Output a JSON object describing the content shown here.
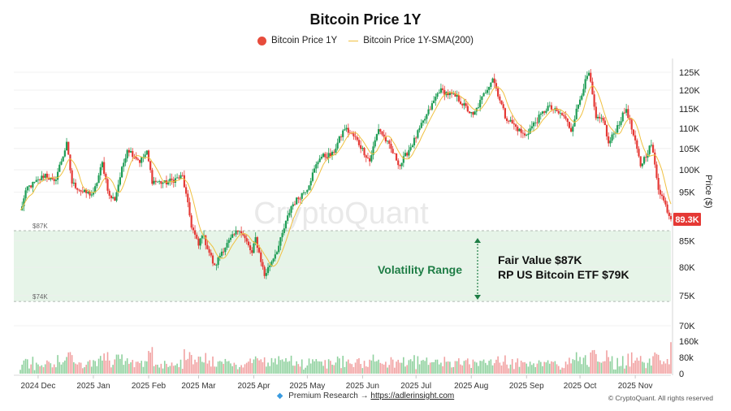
{
  "chart_data": {
    "type": "candlestick",
    "title": "Bitcoin Price 1Y",
    "legend": [
      {
        "label": "Bitcoin Price 1Y",
        "color": "#e74c3c",
        "marker": "dot"
      },
      {
        "label": "Bitcoin Price 1Y-SMA(200)",
        "color": "#f0c040",
        "marker": "line"
      }
    ],
    "ylabel": "Price ($)",
    "y_scale": "log",
    "y_ticks": [
      70000,
      75000,
      80000,
      85000,
      95000,
      100000,
      105000,
      110000,
      115000,
      120000,
      125000
    ],
    "y_tick_labels": [
      "70K",
      "75K",
      "80K",
      "85K",
      "95K",
      "100K",
      "105K",
      "110K",
      "115K",
      "120K",
      "125K"
    ],
    "ylim": [
      70000,
      128000
    ],
    "x_tick_labels": [
      "2024 Dec",
      "2025 Jan",
      "2025 Feb",
      "2025 Mar",
      "2025 Apr",
      "2025 May",
      "2025 Jun",
      "2025 Jul",
      "2025 Aug",
      "2025 Sep",
      "2025 Oct",
      "2025 Nov"
    ],
    "x_start": "2024-11-21",
    "x_end": "2025-11-21",
    "anchors": [
      [
        "2024-11-21",
        91000
      ],
      [
        "2024-11-25",
        96000
      ],
      [
        "2024-12-01",
        97500
      ],
      [
        "2024-12-05",
        99000
      ],
      [
        "2024-12-10",
        97000
      ],
      [
        "2024-12-17",
        106000
      ],
      [
        "2024-12-20",
        97000
      ],
      [
        "2024-12-26",
        95000
      ],
      [
        "2025-01-01",
        94500
      ],
      [
        "2025-01-06",
        101500
      ],
      [
        "2025-01-10",
        94000
      ],
      [
        "2025-01-13",
        93500
      ],
      [
        "2025-01-20",
        105000
      ],
      [
        "2025-01-27",
        102000
      ],
      [
        "2025-01-31",
        104000
      ],
      [
        "2025-02-03",
        97500
      ],
      [
        "2025-02-10",
        97000
      ],
      [
        "2025-02-20",
        98500
      ],
      [
        "2025-02-25",
        88000
      ],
      [
        "2025-03-01",
        84000
      ],
      [
        "2025-03-03",
        86500
      ],
      [
        "2025-03-10",
        80000
      ],
      [
        "2025-03-14",
        83000
      ],
      [
        "2025-03-24",
        87500
      ],
      [
        "2025-03-31",
        82500
      ],
      [
        "2025-04-02",
        85500
      ],
      [
        "2025-04-07",
        78500
      ],
      [
        "2025-04-10",
        80500
      ],
      [
        "2025-04-15",
        84000
      ],
      [
        "2025-04-22",
        92000
      ],
      [
        "2025-05-01",
        96000
      ],
      [
        "2025-05-08",
        103000
      ],
      [
        "2025-05-15",
        103500
      ],
      [
        "2025-05-22",
        110000
      ],
      [
        "2025-05-28",
        107500
      ],
      [
        "2025-06-05",
        102000
      ],
      [
        "2025-06-10",
        110000
      ],
      [
        "2025-06-22",
        101000
      ],
      [
        "2025-06-30",
        107000
      ],
      [
        "2025-07-10",
        116000
      ],
      [
        "2025-07-14",
        120000
      ],
      [
        "2025-07-24",
        118000
      ],
      [
        "2025-08-02",
        113000
      ],
      [
        "2025-08-13",
        123500
      ],
      [
        "2025-08-20",
        113000
      ],
      [
        "2025-08-31",
        108000
      ],
      [
        "2025-09-05",
        111000
      ],
      [
        "2025-09-13",
        115500
      ],
      [
        "2025-09-22",
        113000
      ],
      [
        "2025-09-26",
        109500
      ],
      [
        "2025-10-03",
        121000
      ],
      [
        "2025-10-06",
        124700
      ],
      [
        "2025-10-10",
        112000
      ],
      [
        "2025-10-14",
        112500
      ],
      [
        "2025-10-17",
        106000
      ],
      [
        "2025-10-27",
        115000
      ],
      [
        "2025-11-04",
        101000
      ],
      [
        "2025-11-10",
        106000
      ],
      [
        "2025-11-14",
        96000
      ],
      [
        "2025-11-21",
        89300
      ]
    ],
    "sma_label": "Bitcoin Price 1Y-SMA(200)",
    "last_price_label": "89.3K",
    "last_price_value": 89300,
    "volume_ticks": [
      0,
      80000,
      160000
    ],
    "volume_tick_labels": [
      "0",
      "80k",
      "160k"
    ],
    "bands": [
      {
        "from": 74000,
        "to": 87000,
        "color": "#e6f4e8",
        "upper_label": "$87K",
        "lower_label": "$74K"
      }
    ],
    "annotations": {
      "range_label": "Volatility Range",
      "fair_value": "Fair Value $87K",
      "rp_etf": "RP US Bitcoin ETF $79K"
    },
    "watermark": "CryptoQuant",
    "up_color": "#1f9d55",
    "down_color": "#e53935"
  },
  "footer": {
    "premium": "Premium Research →",
    "link": "https://adlerinsight.com",
    "copyright": "© CryptoQuant. All rights reserved"
  }
}
